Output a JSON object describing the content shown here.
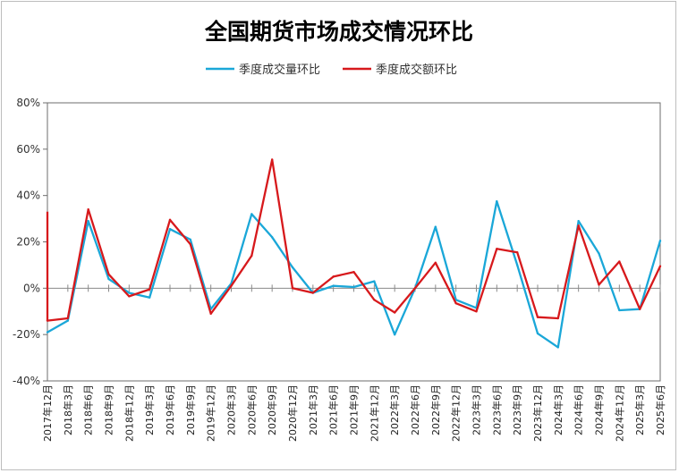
{
  "chart_data": {
    "type": "line",
    "title": "全国期货市场成交情况环比",
    "xlabel": "",
    "ylabel": "",
    "ylim": [
      -40,
      80
    ],
    "yticks": [
      -40,
      -20,
      0,
      20,
      40,
      60,
      80
    ],
    "ytick_labels": [
      "-40%",
      "-20%",
      "0%",
      "20%",
      "40%",
      "60%",
      "80%"
    ],
    "grid": false,
    "legend_position": "top-center",
    "categories": [
      "2017年12月",
      "2018年3月",
      "2018年6月",
      "2018年9月",
      "2018年12月",
      "2019年3月",
      "2019年6月",
      "2019年9月",
      "2019年12月",
      "2020年3月",
      "2020年6月",
      "2020年9月",
      "2020年12月",
      "2021年3月",
      "2021年6月",
      "2021年9月",
      "2021年12月",
      "2022年3月",
      "2022年6月",
      "2022年9月",
      "2022年12月",
      "2023年3月",
      "2023年6月",
      "2023年9月",
      "2023年12月",
      "2024年3月",
      "2024年6月",
      "2024年9月",
      "2024年12月",
      "2025年3月",
      "2025年6月"
    ],
    "series": [
      {
        "name": "季度成交量环比",
        "color": "#1aa7d8",
        "values": [
          -19,
          -14,
          29,
          4,
          -2,
          -4,
          25.5,
          21,
          -9,
          2,
          32,
          22,
          9,
          -2,
          1,
          0.5,
          3,
          -20,
          0,
          26.5,
          -5,
          -8.5,
          37.5,
          10,
          -19.5,
          -25.5,
          29,
          15,
          -9.5,
          -9,
          20.5
        ]
      },
      {
        "name": "季度成交额环比",
        "color": "#d7191c",
        "start_value": 33,
        "values": [
          -14,
          -13,
          34,
          6,
          -3.5,
          -0.5,
          29.5,
          19,
          -11,
          1,
          14,
          55.5,
          0,
          -2,
          5,
          7,
          -5,
          -10.5,
          0,
          11,
          -6.5,
          -10,
          17,
          15.5,
          -12.5,
          -13,
          27,
          1.5,
          11.5,
          -9,
          9.5
        ]
      }
    ]
  }
}
